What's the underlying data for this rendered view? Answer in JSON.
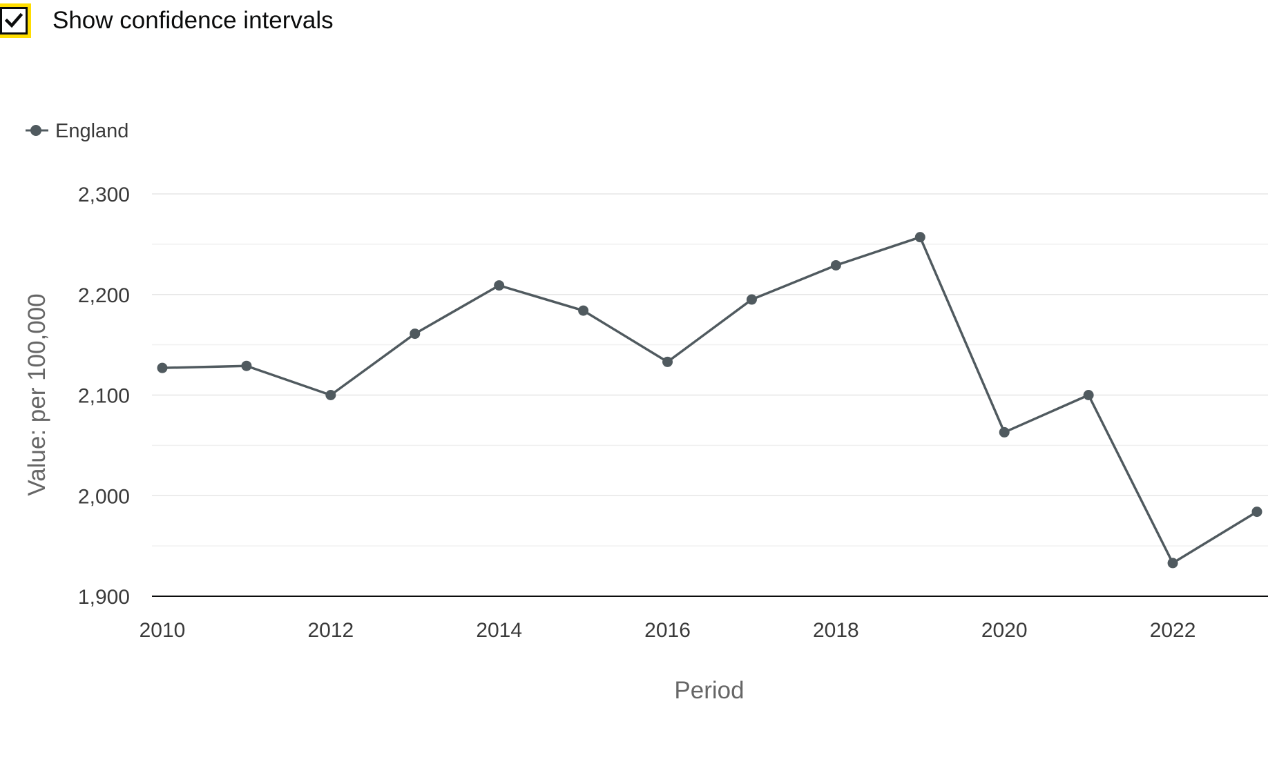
{
  "controls": {
    "confidence_checkbox_label": "Show confidence intervals",
    "confidence_checked": true
  },
  "colors": {
    "series": "#505a5f",
    "focus_outline": "#ffdd00",
    "grid": "#e6e6e6",
    "axis": "#0b0c0c"
  },
  "chart_data": {
    "type": "line",
    "xlabel": "Period",
    "ylabel": "Value: per 100,000",
    "legend_position": "top-left",
    "grid": true,
    "ylim": [
      1900,
      2300
    ],
    "xlim": [
      2010,
      2023
    ],
    "y_ticks": [
      "1,900",
      "2,000",
      "2,100",
      "2,200",
      "2,300"
    ],
    "y_tick_values": [
      1900,
      2000,
      2100,
      2200,
      2300
    ],
    "x_ticks": [
      "2010",
      "2012",
      "2014",
      "2016",
      "2018",
      "2020",
      "2022"
    ],
    "x_tick_values": [
      2010,
      2012,
      2014,
      2016,
      2018,
      2020,
      2022
    ],
    "x": [
      2010,
      2011,
      2012,
      2013,
      2014,
      2015,
      2016,
      2017,
      2018,
      2019,
      2020,
      2021,
      2022,
      2023
    ],
    "series": [
      {
        "name": "England",
        "values": [
          2127,
          2129,
          2100,
          2161,
          2209,
          2184,
          2133,
          2195,
          2229,
          2257,
          2063,
          2100,
          1933,
          1984
        ]
      }
    ]
  }
}
